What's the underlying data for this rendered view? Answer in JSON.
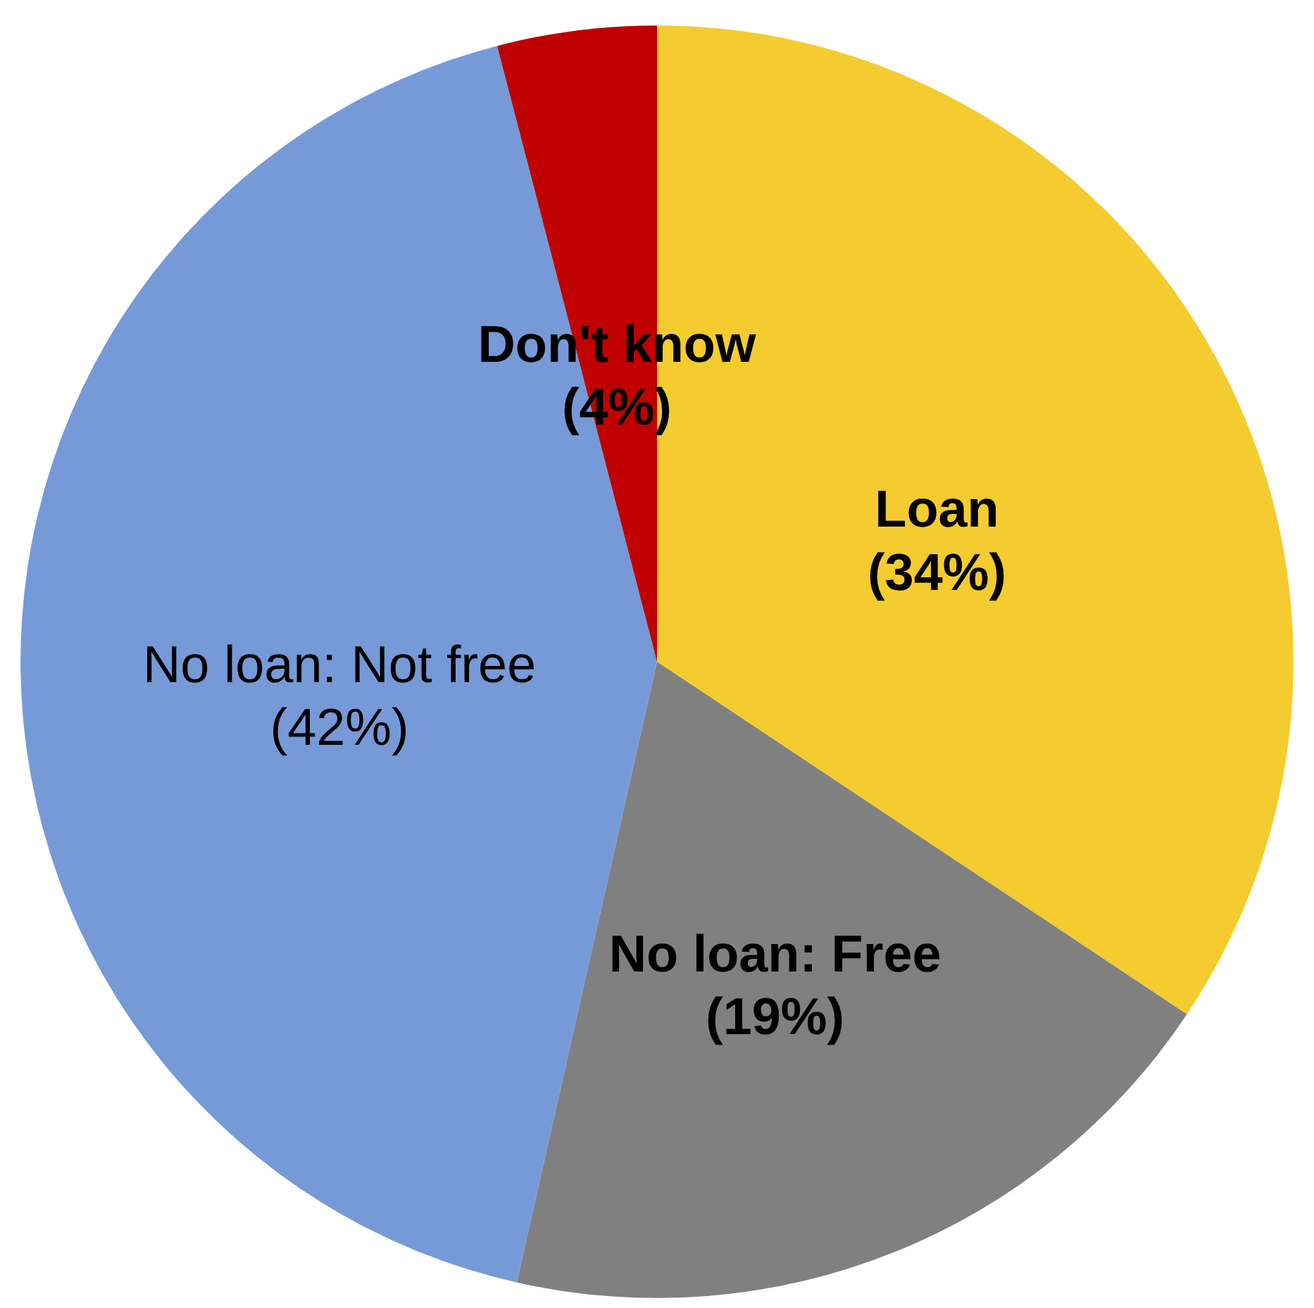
{
  "chart_data": {
    "type": "pie",
    "categories": [
      "Loan",
      "No loan: Free",
      "No loan: Not free",
      "Don't know"
    ],
    "values": [
      34,
      19,
      42,
      4
    ],
    "value_labels": [
      "(34%)",
      "(19%)",
      "(42%)",
      "(4%)"
    ],
    "colors": [
      "#f4cc2f",
      "#808080",
      "#769ad8",
      "#c00000"
    ]
  }
}
